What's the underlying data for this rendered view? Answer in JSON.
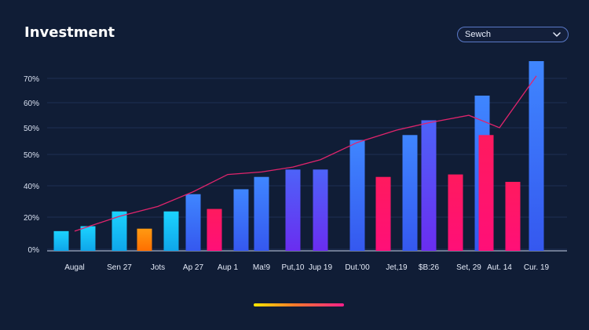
{
  "header": {
    "title": "Investment",
    "select_value": "Sewch"
  },
  "colors": {
    "background": "#101d36",
    "cyan": "#18c6f5",
    "blue": "#3b6cf6",
    "violet": "#5b3cf0",
    "orange": "#ff8a00",
    "pink": "#ff1464",
    "trend_line": "#e0246c",
    "grid": "#1e3054"
  },
  "chart_data": {
    "type": "bar",
    "title": "",
    "xlabel": "",
    "ylabel": "",
    "y_ticks": [
      "70%",
      "60%",
      "50%",
      "50%",
      "40%",
      "20%",
      "0%"
    ],
    "grid": true,
    "categories": [
      "Augal",
      "Sen 27",
      "Jots",
      "Ap 27",
      "Aup 1",
      "Ma!9",
      "Put,10",
      "Jup 19",
      "Dut.'00",
      "Jet,19",
      "$B:26",
      "Set, 29",
      "Aut. 14",
      "Cur. 19"
    ],
    "bars": [
      {
        "slot": 0,
        "value": 8,
        "color": "cyan"
      },
      {
        "slot": 0,
        "value": 10,
        "color": "cyan"
      },
      {
        "slot": 1,
        "value": 16,
        "color": "cyan"
      },
      {
        "slot": 2,
        "value": 9,
        "color": "orange"
      },
      {
        "slot": 2,
        "value": 16,
        "color": "cyan"
      },
      {
        "slot": 3,
        "value": 23,
        "color": "blue"
      },
      {
        "slot": 4,
        "value": 17,
        "color": "pink"
      },
      {
        "slot": 4,
        "value": 25,
        "color": "blue"
      },
      {
        "slot": 5,
        "value": 30,
        "color": "blue"
      },
      {
        "slot": 6,
        "value": 33,
        "color": "violet"
      },
      {
        "slot": 7,
        "value": 33,
        "color": "violet"
      },
      {
        "slot": 8,
        "value": 45,
        "color": "blue"
      },
      {
        "slot": 9,
        "value": 30,
        "color": "pink"
      },
      {
        "slot": 9,
        "value": 47,
        "color": "blue"
      },
      {
        "slot": 10,
        "value": 53,
        "color": "violet"
      },
      {
        "slot": 11,
        "value": 31,
        "color": "pink"
      },
      {
        "slot": 11,
        "value": 63,
        "color": "blue"
      },
      {
        "slot": 12,
        "value": 47,
        "color": "pink"
      },
      {
        "slot": 12,
        "value": 28,
        "color": "pink"
      },
      {
        "slot": 13,
        "value": 77,
        "color": "blue"
      }
    ],
    "trend_line": [
      8,
      14,
      18,
      24,
      31,
      32,
      34,
      37,
      44,
      49,
      52,
      55,
      50,
      71
    ]
  }
}
